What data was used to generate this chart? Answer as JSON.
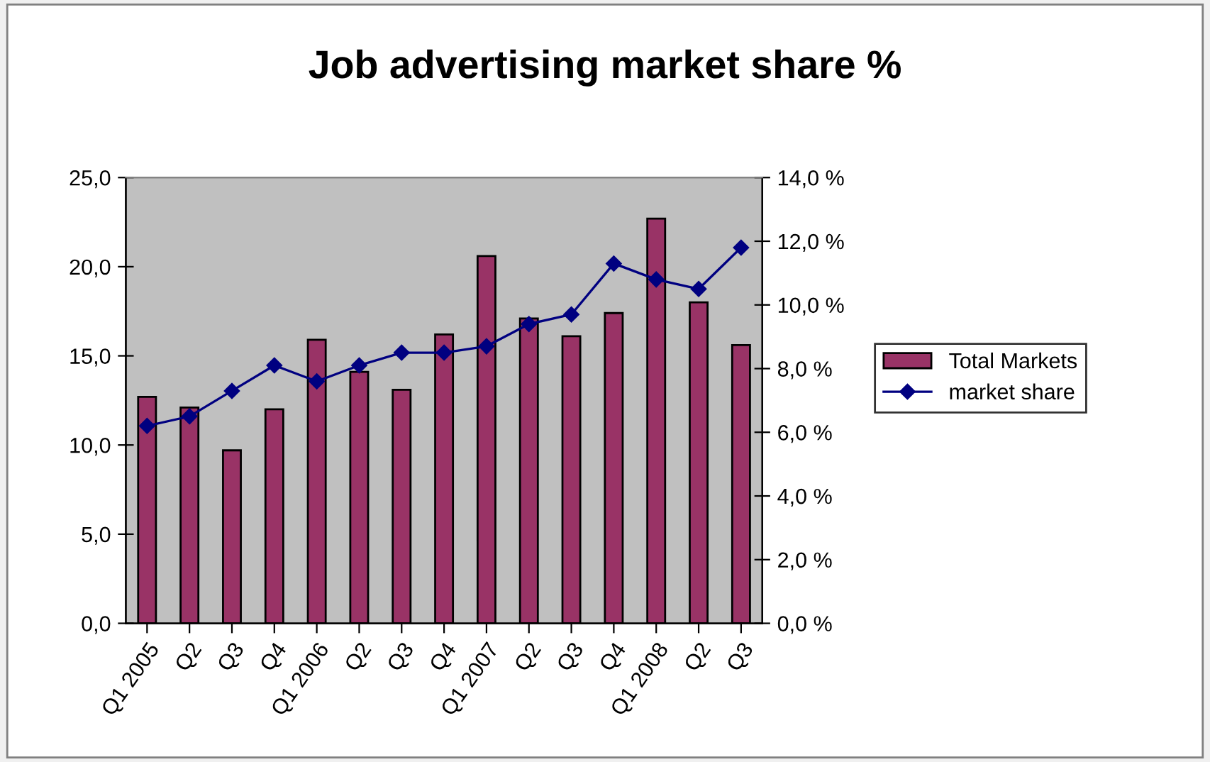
{
  "chart_data": {
    "type": "bar",
    "title": "Job advertising market share %",
    "categories": [
      "Q1 2005",
      "Q2",
      "Q3",
      "Q4",
      "Q1 2006",
      "Q2",
      "Q3",
      "Q4",
      "Q1 2007",
      "Q2",
      "Q3",
      "Q4",
      "Q1 2008",
      "Q2",
      "Q3"
    ],
    "series": [
      {
        "name": "Total Markets",
        "color": "#993366",
        "values": [
          12.7,
          12.1,
          9.7,
          12.0,
          15.9,
          14.1,
          13.1,
          16.2,
          20.6,
          17.1,
          16.1,
          17.4,
          22.7,
          18.0,
          15.6
        ]
      },
      {
        "name": "market share",
        "type": "line",
        "axis": "y2",
        "color": "#000080",
        "marker": "diamond",
        "values": [
          6.2,
          6.5,
          7.3,
          8.1,
          7.6,
          8.1,
          8.5,
          8.5,
          8.7,
          9.4,
          9.7,
          11.3,
          10.8,
          10.5,
          11.8
        ]
      }
    ],
    "ylim": [
      0,
      25
    ],
    "yticks": [
      {
        "value": 0,
        "label": "0,0"
      },
      {
        "value": 5,
        "label": "5,0"
      },
      {
        "value": 10,
        "label": "10,0"
      },
      {
        "value": 15,
        "label": "15,0"
      },
      {
        "value": 20,
        "label": "20,0"
      },
      {
        "value": 25,
        "label": "25,0"
      }
    ],
    "y2lim": [
      0,
      14
    ],
    "y2ticks": [
      {
        "value": 0,
        "label": "0,0 %"
      },
      {
        "value": 2,
        "label": "2,0 %"
      },
      {
        "value": 4,
        "label": "4,0 %"
      },
      {
        "value": 6,
        "label": "6,0 %"
      },
      {
        "value": 8,
        "label": "8,0 %"
      },
      {
        "value": 10,
        "label": "10,0 %"
      },
      {
        "value": 12,
        "label": "12,0 %"
      },
      {
        "value": 14,
        "label": "14,0 %"
      }
    ],
    "grid": false,
    "legend": "right"
  }
}
